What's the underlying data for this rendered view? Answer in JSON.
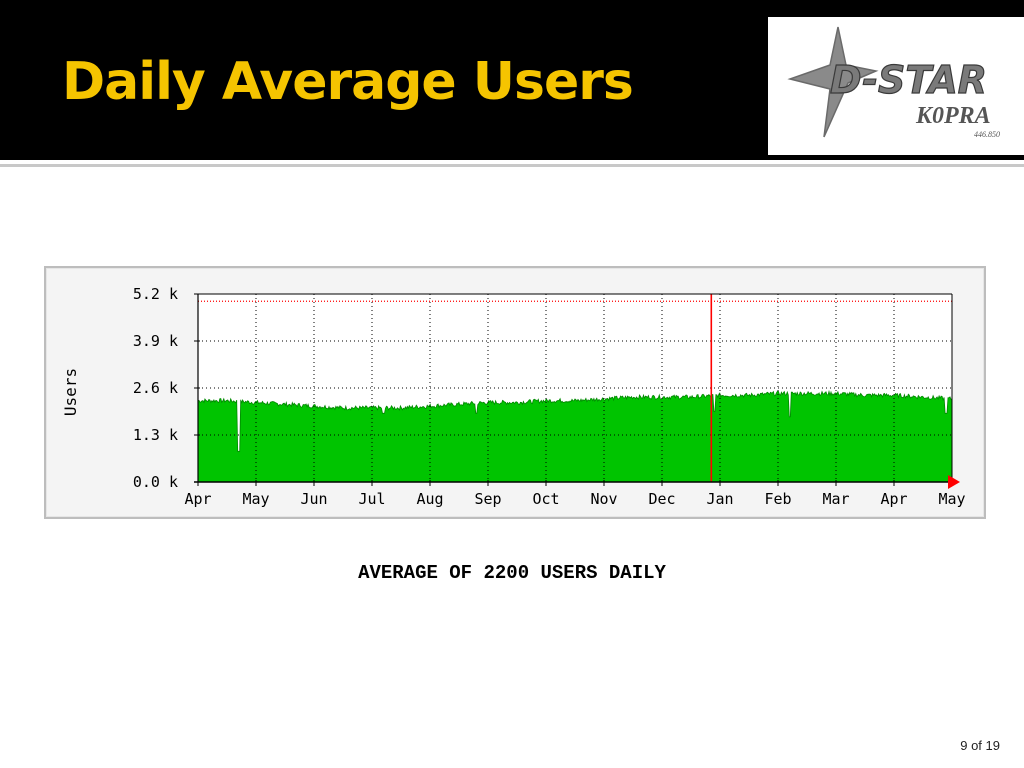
{
  "slide": {
    "title": "Daily Average Users",
    "caption": "AVERAGE OF 2200 USERS DAILY",
    "page_number": "9 of 19"
  },
  "logo": {
    "text": "D-STAR",
    "callsign": "K0PRA",
    "frequency": "446.850"
  },
  "colors": {
    "title": "#f5c400",
    "header_bg": "#000000",
    "area_fill": "#00c400",
    "area_edge": "#008800",
    "max_line": "#ff0000",
    "marker_line": "#ff0000"
  },
  "chart_data": {
    "type": "area",
    "ylabel": "Users",
    "xlabel": "",
    "title": "",
    "ylim": [
      0,
      5200
    ],
    "y_ticks": [
      "0.0 k",
      "1.3 k",
      "2.6 k",
      "3.9 k",
      "5.2 k"
    ],
    "y_tick_values": [
      0,
      1300,
      2600,
      3900,
      5200
    ],
    "x_tick_labels": [
      "Apr",
      "May",
      "Jun",
      "Jul",
      "Aug",
      "Sep",
      "Oct",
      "Nov",
      "Dec",
      "Jan",
      "Feb",
      "Mar",
      "Apr",
      "May"
    ],
    "max_reference_line": 5000,
    "grid": true,
    "month_index": [
      0,
      0.5,
      1,
      1.5,
      2,
      2.5,
      3,
      3.5,
      4,
      4.5,
      5,
      5.5,
      6,
      6.5,
      7,
      7.5,
      8,
      8.5,
      9,
      9.5,
      10,
      10.5,
      11,
      11.5,
      12,
      12.5,
      13
    ],
    "values": [
      2250,
      2250,
      2200,
      2150,
      2100,
      2050,
      2050,
      2050,
      2100,
      2150,
      2200,
      2200,
      2250,
      2250,
      2300,
      2350,
      2350,
      2350,
      2400,
      2400,
      2450,
      2450,
      2450,
      2400,
      2400,
      2350,
      2300
    ],
    "dips": [
      {
        "month": 0.7,
        "value": 850
      },
      {
        "month": 3.2,
        "value": 1900
      },
      {
        "month": 4.8,
        "value": 1900
      },
      {
        "month": 8.9,
        "value": 1950
      },
      {
        "month": 10.2,
        "value": 1800
      },
      {
        "month": 12.9,
        "value": 1900
      }
    ],
    "vertical_marker_month": 8.85
  }
}
